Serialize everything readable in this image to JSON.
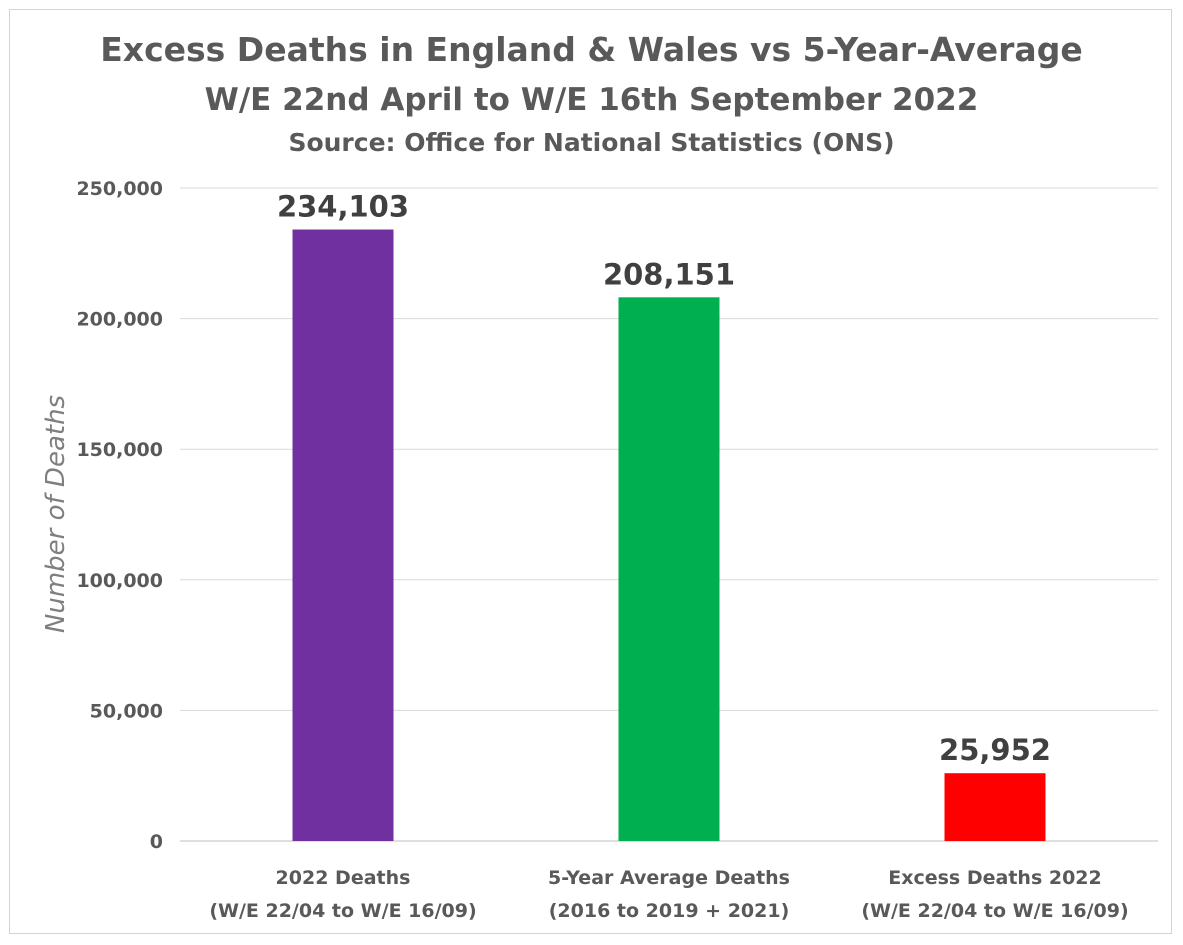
{
  "chart_data": {
    "type": "bar",
    "title": "Excess Deaths in England & Wales vs 5-Year-Average",
    "subtitle": "W/E 22nd April to W/E 16th September 2022",
    "source": "Source: Office for National Statistics (ONS)",
    "xlabel": "",
    "ylabel": "Number of Deaths",
    "ylim": [
      0,
      250000
    ],
    "yticks": [
      0,
      50000,
      100000,
      150000,
      200000,
      250000
    ],
    "grid": true,
    "legend": "none",
    "categories": [
      [
        "2022 Deaths",
        "(W/E 22/04 to W/E 16/09)"
      ],
      [
        "5-Year Average Deaths",
        "(2016 to 2019 + 2021)"
      ],
      [
        "Excess Deaths 2022",
        "(W/E 22/04 to W/E 16/09)"
      ]
    ],
    "values": [
      234103,
      208151,
      25952
    ],
    "colors": [
      "#7030a0",
      "#00b050",
      "#ff0000"
    ]
  }
}
